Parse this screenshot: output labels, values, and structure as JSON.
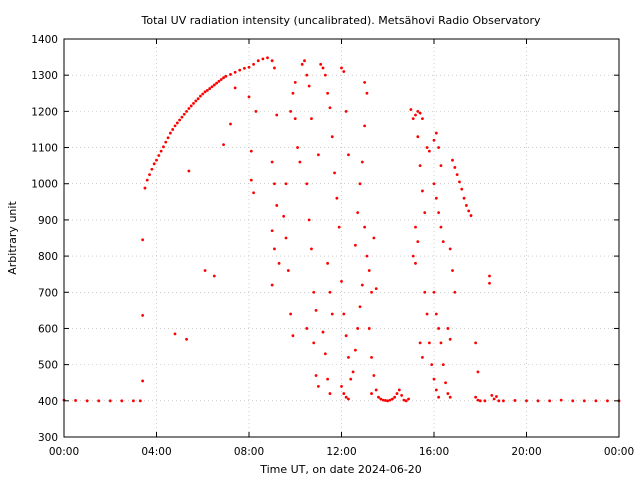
{
  "chart_data": {
    "type": "scatter",
    "title": "Total UV radiation intensity (uncalibrated). Metsähovi Radio Observatory",
    "xlabel": "Time UT, on date 2024-06-20",
    "ylabel": "Arbitrary unit",
    "xlim": [
      0,
      24
    ],
    "ylim": [
      300,
      1400
    ],
    "x_ticks": [
      {
        "value": 0,
        "label": "00:00"
      },
      {
        "value": 4,
        "label": "04:00"
      },
      {
        "value": 8,
        "label": "08:00"
      },
      {
        "value": 12,
        "label": "12:00"
      },
      {
        "value": 16,
        "label": "16:00"
      },
      {
        "value": 20,
        "label": "20:00"
      },
      {
        "value": 24,
        "label": "00:00"
      }
    ],
    "y_ticks": [
      300,
      400,
      500,
      600,
      700,
      800,
      900,
      1000,
      1100,
      1200,
      1300,
      1400
    ],
    "grid": true,
    "marker_color": "#ff0000",
    "series": [
      {
        "points": [
          [
            0.0,
            402
          ],
          [
            0.5,
            401
          ],
          [
            1.0,
            400
          ],
          [
            1.5,
            400
          ],
          [
            2.0,
            400
          ],
          [
            2.5,
            400
          ],
          [
            3.0,
            400
          ],
          [
            3.3,
            400
          ],
          [
            3.4,
            845
          ],
          [
            3.4,
            636
          ],
          [
            3.4,
            455
          ],
          [
            3.5,
            988
          ],
          [
            3.6,
            1010
          ],
          [
            3.7,
            1025
          ],
          [
            3.8,
            1040
          ],
          [
            3.9,
            1055
          ],
          [
            4.0,
            1065
          ],
          [
            4.1,
            1078
          ],
          [
            4.2,
            1090
          ],
          [
            4.3,
            1102
          ],
          [
            4.4,
            1115
          ],
          [
            4.5,
            1127
          ],
          [
            4.6,
            1140
          ],
          [
            4.7,
            1150
          ],
          [
            4.8,
            1160
          ],
          [
            4.9,
            1168
          ],
          [
            5.0,
            1176
          ],
          [
            5.1,
            1184
          ],
          [
            5.2,
            1192
          ],
          [
            5.3,
            1200
          ],
          [
            5.4,
            1208
          ],
          [
            5.5,
            1215
          ],
          [
            5.6,
            1222
          ],
          [
            5.7,
            1229
          ],
          [
            5.8,
            1235
          ],
          [
            5.9,
            1242
          ],
          [
            6.0,
            1248
          ],
          [
            6.1,
            1254
          ],
          [
            6.2,
            1258
          ],
          [
            6.3,
            1263
          ],
          [
            6.4,
            1268
          ],
          [
            6.5,
            1273
          ],
          [
            6.6,
            1278
          ],
          [
            6.7,
            1283
          ],
          [
            6.8,
            1288
          ],
          [
            6.9,
            1293
          ],
          [
            7.0,
            1297
          ],
          [
            7.2,
            1302
          ],
          [
            7.4,
            1308
          ],
          [
            7.6,
            1314
          ],
          [
            7.8,
            1319
          ],
          [
            8.0,
            1322
          ],
          [
            8.2,
            1330
          ],
          [
            8.4,
            1340
          ],
          [
            8.6,
            1345
          ],
          [
            8.8,
            1348
          ],
          [
            4.8,
            585
          ],
          [
            5.3,
            570
          ],
          [
            5.4,
            1035
          ],
          [
            6.1,
            760
          ],
          [
            6.5,
            745
          ],
          [
            6.9,
            1108
          ],
          [
            7.2,
            1165
          ],
          [
            7.4,
            1265
          ],
          [
            8.0,
            1240
          ],
          [
            8.1,
            1090
          ],
          [
            8.1,
            1010
          ],
          [
            8.2,
            975
          ],
          [
            8.3,
            1200
          ],
          [
            9.0,
            1340
          ],
          [
            9.1,
            1320
          ],
          [
            9.2,
            1190
          ],
          [
            9.0,
            1060
          ],
          [
            9.1,
            1000
          ],
          [
            9.2,
            940
          ],
          [
            9.0,
            870
          ],
          [
            9.1,
            820
          ],
          [
            9.3,
            780
          ],
          [
            9.0,
            720
          ],
          [
            9.5,
            910
          ],
          [
            9.6,
            850
          ],
          [
            9.7,
            760
          ],
          [
            9.8,
            640
          ],
          [
            9.9,
            580
          ],
          [
            9.6,
            1000
          ],
          [
            9.8,
            1200
          ],
          [
            9.9,
            1250
          ],
          [
            10.0,
            1280
          ],
          [
            10.0,
            1180
          ],
          [
            10.1,
            1100
          ],
          [
            10.2,
            1060
          ],
          [
            10.3,
            1330
          ],
          [
            10.4,
            1340
          ],
          [
            10.5,
            1300
          ],
          [
            10.6,
            1270
          ],
          [
            10.7,
            1180
          ],
          [
            10.5,
            1000
          ],
          [
            10.6,
            900
          ],
          [
            10.7,
            820
          ],
          [
            10.8,
            700
          ],
          [
            10.9,
            650
          ],
          [
            10.5,
            600
          ],
          [
            10.8,
            560
          ],
          [
            10.9,
            470
          ],
          [
            11.0,
            440
          ],
          [
            11.0,
            1080
          ],
          [
            11.1,
            1330
          ],
          [
            11.2,
            1320
          ],
          [
            11.3,
            1300
          ],
          [
            11.4,
            1250
          ],
          [
            11.5,
            1210
          ],
          [
            11.6,
            1130
          ],
          [
            11.7,
            1030
          ],
          [
            11.8,
            960
          ],
          [
            11.9,
            880
          ],
          [
            11.4,
            780
          ],
          [
            11.5,
            700
          ],
          [
            11.6,
            640
          ],
          [
            11.2,
            590
          ],
          [
            11.3,
            530
          ],
          [
            11.4,
            460
          ],
          [
            11.5,
            420
          ],
          [
            12.0,
            1320
          ],
          [
            12.1,
            1310
          ],
          [
            12.2,
            1200
          ],
          [
            12.3,
            1080
          ],
          [
            12.0,
            730
          ],
          [
            12.1,
            640
          ],
          [
            12.2,
            580
          ],
          [
            12.3,
            520
          ],
          [
            12.4,
            460
          ],
          [
            12.0,
            440
          ],
          [
            12.1,
            420
          ],
          [
            12.2,
            410
          ],
          [
            12.3,
            405
          ],
          [
            12.5,
            480
          ],
          [
            12.6,
            540
          ],
          [
            12.7,
            600
          ],
          [
            12.8,
            660
          ],
          [
            12.9,
            720
          ],
          [
            12.6,
            830
          ],
          [
            12.7,
            920
          ],
          [
            12.8,
            1000
          ],
          [
            12.9,
            1060
          ],
          [
            13.0,
            1160
          ],
          [
            13.0,
            1280
          ],
          [
            13.1,
            1250
          ],
          [
            13.0,
            880
          ],
          [
            13.1,
            800
          ],
          [
            13.2,
            760
          ],
          [
            13.3,
            700
          ],
          [
            13.4,
            850
          ],
          [
            13.5,
            710
          ],
          [
            13.2,
            600
          ],
          [
            13.3,
            520
          ],
          [
            13.4,
            470
          ],
          [
            13.5,
            430
          ],
          [
            13.3,
            420
          ],
          [
            13.6,
            410
          ],
          [
            13.7,
            405
          ],
          [
            13.8,
            402
          ],
          [
            13.9,
            401
          ],
          [
            14.0,
            400
          ],
          [
            14.1,
            402
          ],
          [
            14.2,
            405
          ],
          [
            14.3,
            410
          ],
          [
            14.4,
            420
          ],
          [
            14.5,
            430
          ],
          [
            14.6,
            415
          ],
          [
            14.7,
            402
          ],
          [
            14.8,
            400
          ],
          [
            14.9,
            405
          ],
          [
            15.0,
            1205
          ],
          [
            15.1,
            1180
          ],
          [
            15.2,
            1190
          ],
          [
            15.3,
            1200
          ],
          [
            15.4,
            1195
          ],
          [
            15.5,
            1180
          ],
          [
            15.3,
            1130
          ],
          [
            15.4,
            1050
          ],
          [
            15.5,
            980
          ],
          [
            15.6,
            920
          ],
          [
            15.7,
            1100
          ],
          [
            15.8,
            1090
          ],
          [
            15.2,
            880
          ],
          [
            15.3,
            840
          ],
          [
            15.1,
            800
          ],
          [
            15.2,
            780
          ],
          [
            15.6,
            700
          ],
          [
            15.7,
            640
          ],
          [
            15.8,
            560
          ],
          [
            15.9,
            500
          ],
          [
            15.4,
            560
          ],
          [
            15.5,
            520
          ],
          [
            16.0,
            1120
          ],
          [
            16.1,
            1140
          ],
          [
            16.2,
            1100
          ],
          [
            16.3,
            1050
          ],
          [
            16.0,
            1000
          ],
          [
            16.1,
            960
          ],
          [
            16.2,
            920
          ],
          [
            16.3,
            880
          ],
          [
            16.4,
            840
          ],
          [
            16.0,
            700
          ],
          [
            16.1,
            640
          ],
          [
            16.2,
            600
          ],
          [
            16.3,
            560
          ],
          [
            16.0,
            460
          ],
          [
            16.1,
            430
          ],
          [
            16.2,
            410
          ],
          [
            16.4,
            500
          ],
          [
            16.5,
            450
          ],
          [
            16.6,
            420
          ],
          [
            16.7,
            410
          ],
          [
            16.8,
            1065
          ],
          [
            16.9,
            1045
          ],
          [
            17.0,
            1025
          ],
          [
            17.1,
            1005
          ],
          [
            17.2,
            985
          ],
          [
            17.3,
            960
          ],
          [
            17.4,
            940
          ],
          [
            17.5,
            925
          ],
          [
            17.6,
            912
          ],
          [
            16.7,
            820
          ],
          [
            16.8,
            760
          ],
          [
            16.9,
            700
          ],
          [
            16.6,
            600
          ],
          [
            16.7,
            570
          ],
          [
            17.8,
            560
          ],
          [
            17.9,
            480
          ],
          [
            17.8,
            410
          ],
          [
            17.9,
            402
          ],
          [
            18.0,
            400
          ],
          [
            18.2,
            400
          ],
          [
            18.4,
            745
          ],
          [
            18.4,
            725
          ],
          [
            18.5,
            415
          ],
          [
            18.6,
            405
          ],
          [
            18.7,
            412
          ],
          [
            18.8,
            400
          ],
          [
            19.0,
            400
          ],
          [
            19.5,
            401
          ],
          [
            20.0,
            400
          ],
          [
            20.5,
            400
          ],
          [
            21.0,
            400
          ],
          [
            21.5,
            402
          ],
          [
            22.0,
            400
          ],
          [
            22.5,
            400
          ],
          [
            23.0,
            400
          ],
          [
            23.5,
            400
          ],
          [
            24.0,
            400
          ]
        ]
      }
    ]
  }
}
